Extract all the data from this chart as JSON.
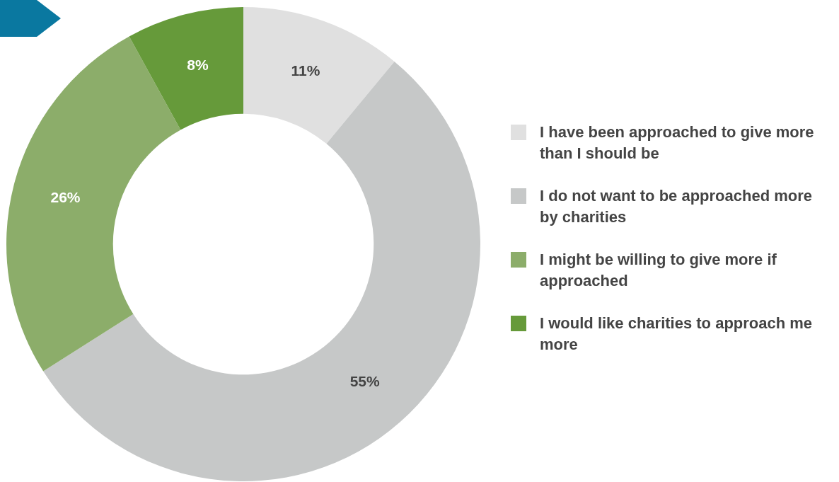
{
  "chart_data": {
    "type": "donut",
    "categories": [
      "I have been approached to give more than I should be",
      "I do not want to be approached more by charities",
      "I might be willing to give more if approached",
      "I would like charities to approach me more"
    ],
    "values": [
      11,
      55,
      26,
      8
    ],
    "colors": [
      "#e0e0e0",
      "#c6c8c8",
      "#8cad6a",
      "#669a3a"
    ],
    "value_labels": [
      "11%",
      "55%",
      "26%",
      "8%"
    ],
    "legend": "right"
  }
}
